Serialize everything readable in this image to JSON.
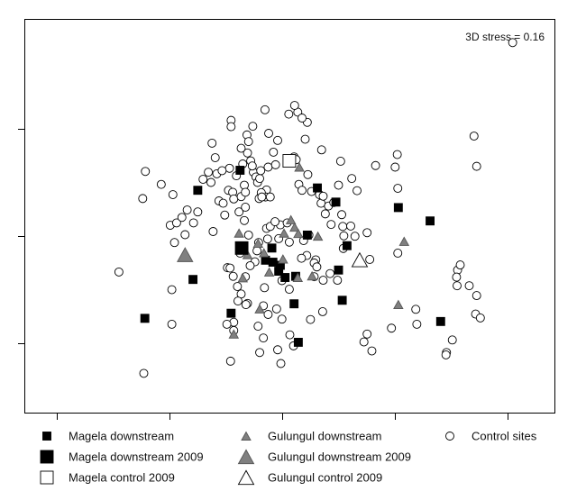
{
  "chart_data": {
    "type": "scatter",
    "annotation": "3D stress = 0.16",
    "grid": false,
    "xlim": [
      0,
      100
    ],
    "ylim": [
      0,
      100
    ],
    "legend": {
      "placement": "bottom",
      "items": [
        {
          "key": "magela_downstream",
          "label": "Magela downstream",
          "marker": "square-small"
        },
        {
          "key": "magela_downstream_2009",
          "label": "Magela downstream 2009",
          "marker": "square-large"
        },
        {
          "key": "magela_control_2009",
          "label": "Magela control 2009",
          "marker": "square-open-large"
        },
        {
          "key": "gulungul_downstream",
          "label": "Gulungul downstream",
          "marker": "triangle-small"
        },
        {
          "key": "gulungul_downstream_2009",
          "label": "Gulungul downstream 2009",
          "marker": "triangle-large"
        },
        {
          "key": "gulungul_control_2009",
          "label": "Gulungul control 2009",
          "marker": "triangle-open-large"
        },
        {
          "key": "control_sites",
          "label": "Control sites",
          "marker": "circle-open"
        }
      ]
    },
    "series": [
      {
        "key": "magela_downstream",
        "name": "Magela downstream",
        "points": [
          [
            22.6,
            24.0
          ],
          [
            32.6,
            56.6
          ],
          [
            40.6,
            61.7
          ],
          [
            46.6,
            41.9
          ],
          [
            45.4,
            38.8
          ],
          [
            47.9,
            36.0
          ],
          [
            53.3,
            45.2
          ],
          [
            46.8,
            38.3
          ],
          [
            48.2,
            37.5
          ],
          [
            49.1,
            34.4
          ],
          [
            51.1,
            34.7
          ],
          [
            50.8,
            27.7
          ],
          [
            51.6,
            17.9
          ],
          [
            55.2,
            57.2
          ],
          [
            58.7,
            53.6
          ],
          [
            59.2,
            36.3
          ],
          [
            59.9,
            28.6
          ],
          [
            60.8,
            42.5
          ],
          [
            70.5,
            52.2
          ],
          [
            76.5,
            48.8
          ],
          [
            78.5,
            23.2
          ],
          [
            38.9,
            25.3
          ],
          [
            31.7,
            33.9
          ]
        ]
      },
      {
        "key": "magela_downstream_2009",
        "name": "Magela downstream 2009",
        "points": [
          [
            40.9,
            41.9
          ]
        ]
      },
      {
        "key": "magela_control_2009",
        "name": "Magela control 2009",
        "points": [
          [
            49.9,
            64.1
          ]
        ]
      },
      {
        "key": "gulungul_downstream",
        "name": "Gulungul downstream",
        "points": [
          [
            40.4,
            45.7
          ],
          [
            41.1,
            34.3
          ],
          [
            44.3,
            26.4
          ],
          [
            42.0,
            40.2
          ],
          [
            45.1,
            40.7
          ],
          [
            46.1,
            35.8
          ],
          [
            48.9,
            45.7
          ],
          [
            48.7,
            39.1
          ],
          [
            50.2,
            49.1
          ],
          [
            50.9,
            47.2
          ],
          [
            51.5,
            34.4
          ],
          [
            51.6,
            45.6
          ],
          [
            51.8,
            62.5
          ],
          [
            54.2,
            34.8
          ],
          [
            55.3,
            44.9
          ],
          [
            71.6,
            43.6
          ],
          [
            39.4,
            20.0
          ],
          [
            70.5,
            27.5
          ],
          [
            44.0,
            43.1
          ]
        ]
      },
      {
        "key": "gulungul_downstream_2009",
        "name": "Gulungul downstream 2009",
        "points": [
          [
            30.2,
            40.2
          ]
        ]
      },
      {
        "key": "gulungul_control_2009",
        "name": "Gulungul control 2009",
        "points": [
          [
            63.2,
            38.9
          ]
        ]
      },
      {
        "key": "control_sites",
        "name": "Control sites",
        "points": [
          [
            92.1,
            94.2
          ],
          [
            17.7,
            35.8
          ],
          [
            22.7,
            61.4
          ],
          [
            22.2,
            54.5
          ],
          [
            27.9,
            55.5
          ],
          [
            27.4,
            47.7
          ],
          [
            28.6,
            48.3
          ],
          [
            29.6,
            49.7
          ],
          [
            28.2,
            43.3
          ],
          [
            27.7,
            31.3
          ],
          [
            27.7,
            22.5
          ],
          [
            22.4,
            10.0
          ],
          [
            30.6,
            51.6
          ],
          [
            30.2,
            45.3
          ],
          [
            31.8,
            48.3
          ],
          [
            32.6,
            51.1
          ],
          [
            33.6,
            59.4
          ],
          [
            34.6,
            61.2
          ],
          [
            35.1,
            58.6
          ],
          [
            35.5,
            46.1
          ],
          [
            36.6,
            53.9
          ],
          [
            36.2,
            60.8
          ],
          [
            37.4,
            53.3
          ],
          [
            37.7,
            50.3
          ],
          [
            38.4,
            56.6
          ],
          [
            38.6,
            62.2
          ],
          [
            38.9,
            74.4
          ],
          [
            38.9,
            72.8
          ],
          [
            39.2,
            56.1
          ],
          [
            39.4,
            54.4
          ],
          [
            39.9,
            60.3
          ],
          [
            40.4,
            51.1
          ],
          [
            40.8,
            55.0
          ],
          [
            41.1,
            63.3
          ],
          [
            41.4,
            57.9
          ],
          [
            41.6,
            56.1
          ],
          [
            41.6,
            52.3
          ],
          [
            41.4,
            48.9
          ],
          [
            42.2,
            45.2
          ],
          [
            42.6,
            64.1
          ],
          [
            43.1,
            61.2
          ],
          [
            43.6,
            60.0
          ],
          [
            43.9,
            58.6
          ],
          [
            44.2,
            54.5
          ],
          [
            44.3,
            59.6
          ],
          [
            44.5,
            61.6
          ],
          [
            45.3,
            77.1
          ],
          [
            45.6,
            56.7
          ],
          [
            45.9,
            62.5
          ],
          [
            45.4,
            54.9
          ],
          [
            45.6,
            46.9
          ],
          [
            46.3,
            47.4
          ],
          [
            45.8,
            44.2
          ],
          [
            44.1,
            43.3
          ],
          [
            43.8,
            41.2
          ],
          [
            43.4,
            38.4
          ],
          [
            42.5,
            37.4
          ],
          [
            41.6,
            34.6
          ],
          [
            40.1,
            32.1
          ],
          [
            39.3,
            34.7
          ],
          [
            38.2,
            36.9
          ],
          [
            40.8,
            30.2
          ],
          [
            40.2,
            28.4
          ],
          [
            39.4,
            23.0
          ],
          [
            39.4,
            20.9
          ],
          [
            38.8,
            13.1
          ],
          [
            38.1,
            22.5
          ],
          [
            38.7,
            36.8
          ],
          [
            40.6,
            40.6
          ],
          [
            42.0,
            27.8
          ],
          [
            44.0,
            22.0
          ],
          [
            45.0,
            19.0
          ],
          [
            44.3,
            15.3
          ],
          [
            47.7,
            16.0
          ],
          [
            47.9,
            44.3
          ],
          [
            48.2,
            47.8
          ],
          [
            47.2,
            48.6
          ],
          [
            49.5,
            48.3
          ],
          [
            49.9,
            43.4
          ],
          [
            50.8,
            65.1
          ],
          [
            51.2,
            64.4
          ],
          [
            51.7,
            58.1
          ],
          [
            52.3,
            56.6
          ],
          [
            54.1,
            56.3
          ],
          [
            55.6,
            55.5
          ],
          [
            55.9,
            53.3
          ],
          [
            56.3,
            55.1
          ],
          [
            57.3,
            52.6
          ],
          [
            57.8,
            47.9
          ],
          [
            58.3,
            53.5
          ],
          [
            59.2,
            57.9
          ],
          [
            59.8,
            50.4
          ],
          [
            60.0,
            47.4
          ],
          [
            60.2,
            45.0
          ],
          [
            60.1,
            41.8
          ],
          [
            59.0,
            33.7
          ],
          [
            57.6,
            35.4
          ],
          [
            56.3,
            33.7
          ],
          [
            54.9,
            38.9
          ],
          [
            54.6,
            38.1
          ],
          [
            53.2,
            40.0
          ],
          [
            52.2,
            39.3
          ],
          [
            52.6,
            43.8
          ],
          [
            53.6,
            45.2
          ],
          [
            56.2,
            25.7
          ],
          [
            53.9,
            23.7
          ],
          [
            48.5,
            23.8
          ],
          [
            50.0,
            19.8
          ],
          [
            50.7,
            17.0
          ],
          [
            48.3,
            12.5
          ],
          [
            49.8,
            76.0
          ],
          [
            51.5,
            76.5
          ],
          [
            53.3,
            73.9
          ],
          [
            52.3,
            75.0
          ],
          [
            47.7,
            69.3
          ],
          [
            46.9,
            66.3
          ],
          [
            47.3,
            63.1
          ],
          [
            44.6,
            56.0
          ],
          [
            42.9,
            62.8
          ],
          [
            42.0,
            66.1
          ],
          [
            40.8,
            67.3
          ],
          [
            37.2,
            61.6
          ],
          [
            35.9,
            64.9
          ],
          [
            35.3,
            68.6
          ],
          [
            41.9,
            70.7
          ],
          [
            42.2,
            69.0
          ],
          [
            43.0,
            72.9
          ],
          [
            46.0,
            71.1
          ],
          [
            50.9,
            78.2
          ],
          [
            52.9,
            69.6
          ],
          [
            53.4,
            60.6
          ],
          [
            56.0,
            66.9
          ],
          [
            59.6,
            64.0
          ],
          [
            61.7,
            59.6
          ],
          [
            62.7,
            56.5
          ],
          [
            62.3,
            44.9
          ],
          [
            61.5,
            47.5
          ],
          [
            64.6,
            45.8
          ],
          [
            65.1,
            39.0
          ],
          [
            66.2,
            62.9
          ],
          [
            69.9,
            62.5
          ],
          [
            70.3,
            65.7
          ],
          [
            70.4,
            57.1
          ],
          [
            70.4,
            40.6
          ],
          [
            73.8,
            26.3
          ],
          [
            74.0,
            22.5
          ],
          [
            69.2,
            21.5
          ],
          [
            64.6,
            20.0
          ],
          [
            64.0,
            18.0
          ],
          [
            54.6,
            34.6
          ],
          [
            55.1,
            37.1
          ],
          [
            49.9,
            31.4
          ],
          [
            48.5,
            33.6
          ],
          [
            47.5,
            26.4
          ],
          [
            45.2,
            31.8
          ],
          [
            45.0,
            27.2
          ],
          [
            45.9,
            25.0
          ],
          [
            41.7,
            27.5
          ],
          [
            84.8,
            70.4
          ],
          [
            85.3,
            62.7
          ],
          [
            81.6,
            32.3
          ],
          [
            81.7,
            36.3
          ],
          [
            82.2,
            37.6
          ],
          [
            81.5,
            34.5
          ],
          [
            83.9,
            32.3
          ],
          [
            85.3,
            29.8
          ],
          [
            85.1,
            25.1
          ],
          [
            79.6,
            15.3
          ],
          [
            79.5,
            14.7
          ],
          [
            80.7,
            18.5
          ],
          [
            86.0,
            24.1
          ],
          [
            65.5,
            15.7
          ],
          [
            56.7,
            50.6
          ],
          [
            44.7,
            54.9
          ],
          [
            46.3,
            54.9
          ],
          [
            25.7,
            58.1
          ]
        ]
      }
    ]
  }
}
